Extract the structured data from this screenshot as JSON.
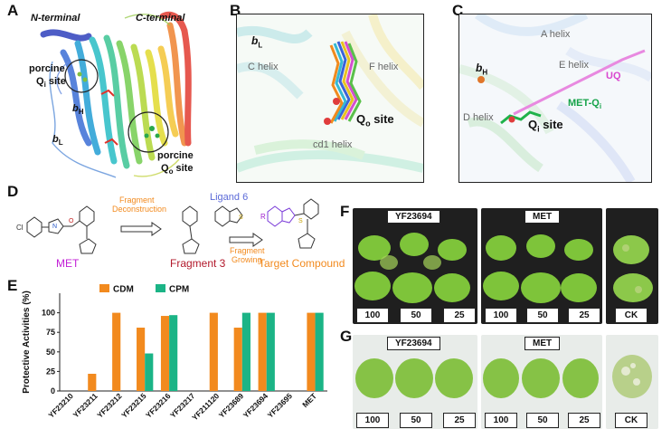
{
  "panels": {
    "A": "A",
    "B": "B",
    "C": "C",
    "D": "D",
    "E": "E",
    "F": "F",
    "G": "G"
  },
  "panel_a": {
    "n_terminal": "N-terminal",
    "c_terminal": "C-terminal",
    "porcine_qi_1": "porcine",
    "porcine_qi_2": "Q",
    "porcine_qi_sub": "i",
    "porcine_qi_3": " site",
    "bh": "b",
    "bh_sub": "H",
    "bl": "b",
    "bl_sub": "L",
    "porcine_qo_1": "porcine",
    "porcine_qo_2": "Q",
    "porcine_qo_sub": "o",
    "porcine_qo_3": " site"
  },
  "panel_b": {
    "bl": "b",
    "bl_sub": "L",
    "c_helix": "C helix",
    "f_helix": "F helix",
    "qo_site": "Q",
    "qo_sub": "o",
    "qo_rest": " site",
    "cd1_helix": "cd1 helix"
  },
  "panel_c": {
    "a_helix": "A helix",
    "bh": "b",
    "bh_sub": "H",
    "e_helix": "E helix",
    "uq": "UQ",
    "met_qi": "MET-Q",
    "met_qi_sub": "i",
    "d_helix": "D helix",
    "qi_site": "Q",
    "qi_sub": "i",
    "qi_rest": " site"
  },
  "panel_d": {
    "met": "MET",
    "fragment_deconstruction_1": "Fragment",
    "fragment_deconstruction_2": "Deconstruction",
    "fragment3": "Fragment 3",
    "ligand6": "Ligand 6",
    "fragment_growing_1": "Fragment",
    "fragment_growing_2": "Growing",
    "target_compound": "Target Compound",
    "atom_cl": "Cl",
    "atom_n": "N",
    "atom_o": "O",
    "atom_s": "S",
    "atom_r": "R"
  },
  "panel_f": {
    "left_title": "YF23694",
    "mid_title": "MET",
    "doses": [
      "100",
      "50",
      "25"
    ],
    "ck": "CK"
  },
  "panel_g": {
    "left_title": "YF23694",
    "mid_title": "MET",
    "doses": [
      "100",
      "50",
      "25"
    ],
    "ck": "CK"
  },
  "colors": {
    "cdm": "#f28a1e",
    "cpm": "#1bb486",
    "met_label": "#c21fd6",
    "fragment3_label": "#b2182b",
    "ligand6_label": "#5b6ad8",
    "target_label": "#f28a1e",
    "arrow_text": "#f28a1e"
  },
  "chart_data": {
    "type": "bar",
    "ylabel": "Protective Activities (%)",
    "ylim": [
      0,
      125
    ],
    "yticks": [
      0,
      25,
      50,
      75,
      100
    ],
    "legend_position": "top-left",
    "categories": [
      "YF23210",
      "YF23211",
      "YF23212",
      "YF23215",
      "YF23216",
      "YF23217",
      "YF211120",
      "YF23689",
      "YF23694",
      "YF23695",
      "MET"
    ],
    "series": [
      {
        "name": "CDM",
        "color": "#f28a1e",
        "values": [
          0,
          22,
          100,
          81,
          96,
          0,
          100,
          81,
          100,
          0,
          100
        ]
      },
      {
        "name": "CPM",
        "color": "#1bb486",
        "values": [
          0,
          0,
          0,
          48,
          97,
          0,
          0,
          100,
          100,
          0,
          100
        ]
      }
    ]
  }
}
